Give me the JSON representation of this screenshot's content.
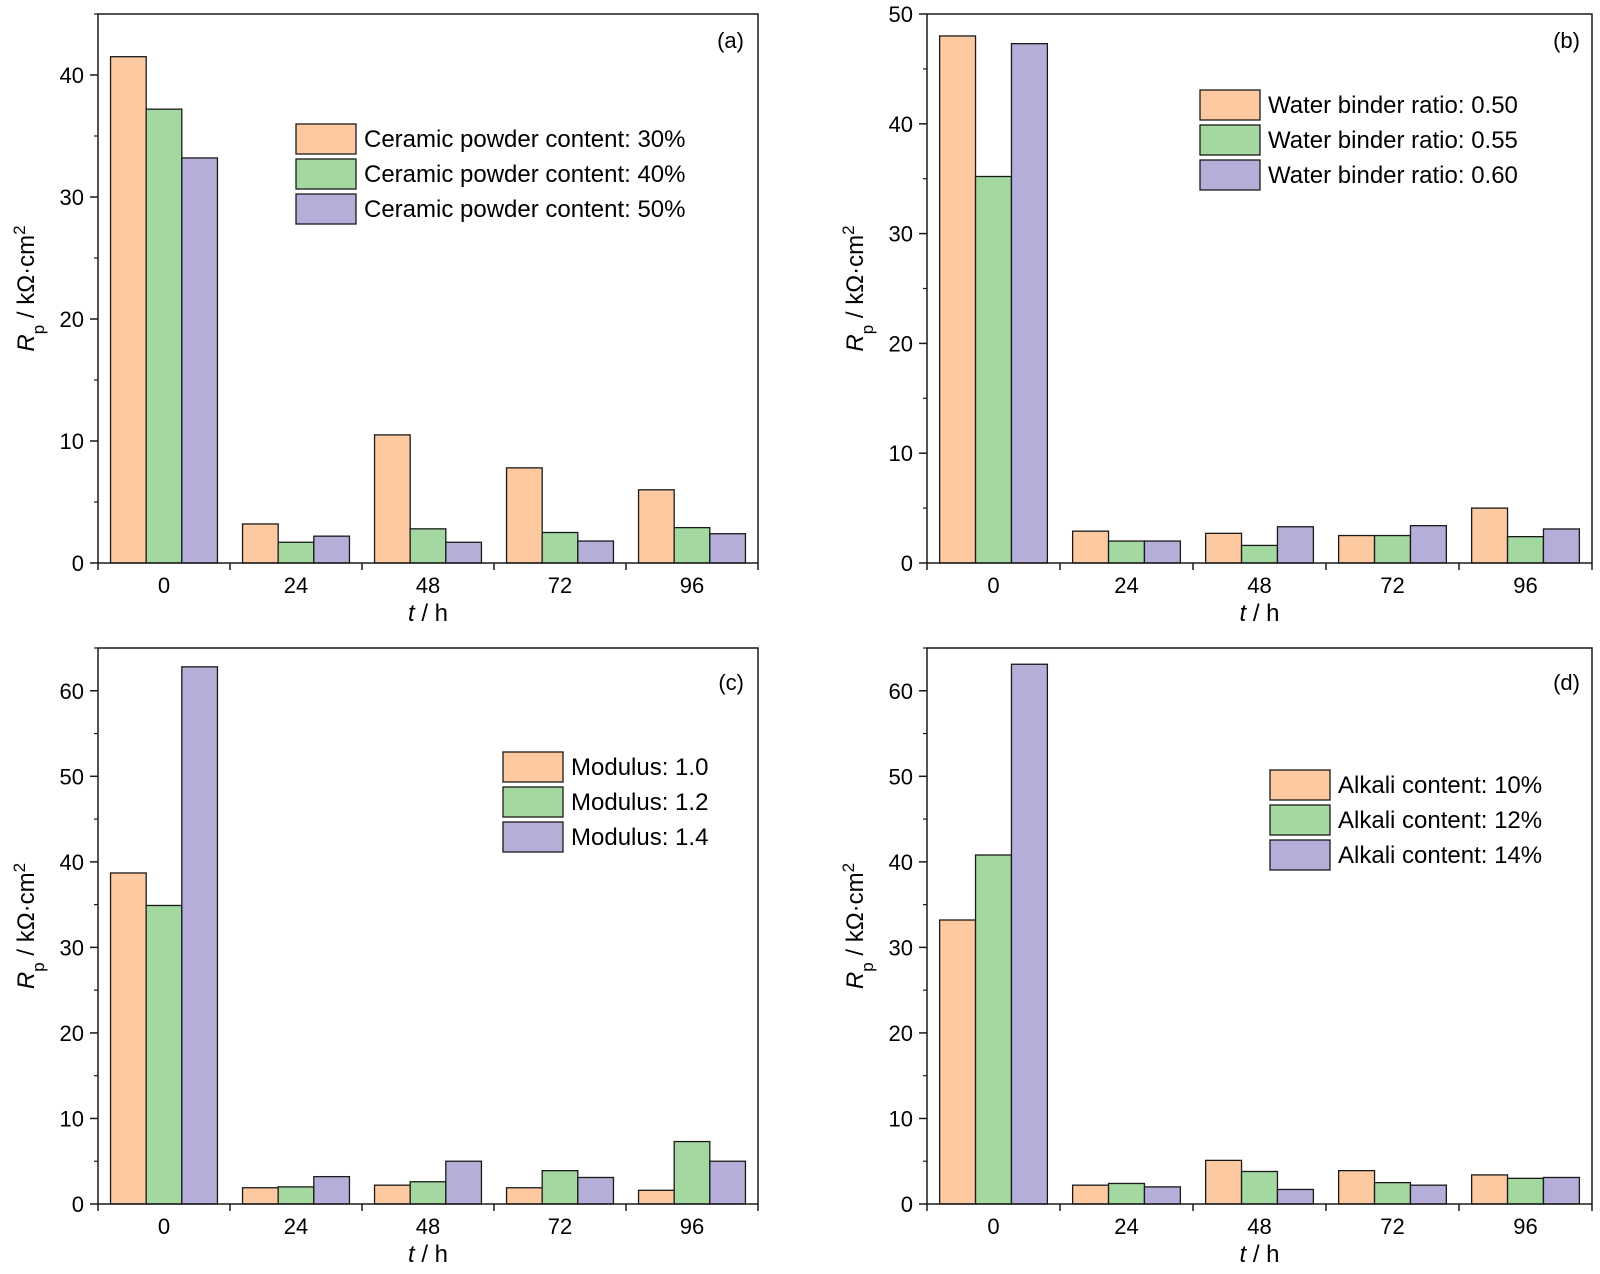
{
  "colors": {
    "series1": "#FDC9A1",
    "series2": "#A3D9A0",
    "series3": "#B4AED8",
    "stroke": "#1a1a1a"
  },
  "chart_data": [
    {
      "type": "bar",
      "panel_label": "(a)",
      "categories": [
        "0",
        "24",
        "48",
        "72",
        "96"
      ],
      "series": [
        {
          "name": "Ceramic powder content: 30%",
          "values": [
            41.5,
            3.2,
            10.5,
            7.8,
            6.0
          ]
        },
        {
          "name": "Ceramic powder content: 40%",
          "values": [
            37.2,
            1.7,
            2.8,
            2.5,
            2.9
          ]
        },
        {
          "name": "Ceramic powder content: 50%",
          "values": [
            33.2,
            2.2,
            1.7,
            1.8,
            2.4
          ]
        }
      ],
      "xlabel_var": "t",
      "xlabel_unit": " / h",
      "ylabel_var": "R",
      "ylabel_sub": "p",
      "ylabel_unit": " / kΩ·cm",
      "ylabel_sup": "2",
      "ylim": [
        0,
        45
      ],
      "yticks": [
        0,
        10,
        20,
        30,
        40
      ],
      "legend_position": "top-right"
    },
    {
      "type": "bar",
      "panel_label": "(b)",
      "categories": [
        "0",
        "24",
        "48",
        "72",
        "96"
      ],
      "series": [
        {
          "name": "Water binder ratio: 0.50",
          "values": [
            48.0,
            2.9,
            2.7,
            2.5,
            5.0
          ]
        },
        {
          "name": "Water binder ratio: 0.55",
          "values": [
            35.2,
            2.0,
            1.6,
            2.5,
            2.4
          ]
        },
        {
          "name": "Water binder ratio: 0.60",
          "values": [
            47.3,
            2.0,
            3.3,
            3.4,
            3.1
          ]
        }
      ],
      "xlabel_var": "t",
      "xlabel_unit": " / h",
      "ylabel_var": "R",
      "ylabel_sub": "p",
      "ylabel_unit": " / kΩ·cm",
      "ylabel_sup": "2",
      "ylim": [
        0,
        50
      ],
      "yticks": [
        0,
        10,
        20,
        30,
        40,
        50
      ],
      "legend_position": "top-right"
    },
    {
      "type": "bar",
      "panel_label": "(c)",
      "categories": [
        "0",
        "24",
        "48",
        "72",
        "96"
      ],
      "series": [
        {
          "name": "Modulus: 1.0",
          "values": [
            38.7,
            1.9,
            2.2,
            1.9,
            1.6
          ]
        },
        {
          "name": "Modulus: 1.2",
          "values": [
            34.9,
            2.0,
            2.6,
            3.9,
            7.3
          ]
        },
        {
          "name": "Modulus: 1.4",
          "values": [
            62.8,
            3.2,
            5.0,
            3.1,
            5.0
          ]
        }
      ],
      "xlabel_var": "t",
      "xlabel_unit": " / h",
      "ylabel_var": "R",
      "ylabel_sub": "p",
      "ylabel_unit": " / kΩ·cm",
      "ylabel_sup": "2",
      "ylim": [
        0,
        65
      ],
      "yticks": [
        0,
        10,
        20,
        30,
        40,
        50,
        60
      ],
      "legend_position": "top-right"
    },
    {
      "type": "bar",
      "panel_label": "(d)",
      "categories": [
        "0",
        "24",
        "48",
        "72",
        "96"
      ],
      "series": [
        {
          "name": "Alkali content: 10%",
          "values": [
            33.2,
            2.2,
            5.1,
            3.9,
            3.4
          ]
        },
        {
          "name": "Alkali content: 12%",
          "values": [
            40.8,
            2.4,
            3.8,
            2.5,
            3.0
          ]
        },
        {
          "name": "Alkali content: 14%",
          "values": [
            63.1,
            2.0,
            1.7,
            2.2,
            3.1
          ]
        }
      ],
      "xlabel_var": "t",
      "xlabel_unit": " / h",
      "ylabel_var": "R",
      "ylabel_sub": "p",
      "ylabel_unit": " / kΩ·cm",
      "ylabel_sup": "2",
      "ylim": [
        0,
        65
      ],
      "yticks": [
        0,
        10,
        20,
        30,
        40,
        50,
        60
      ],
      "legend_position": "top-right"
    }
  ]
}
